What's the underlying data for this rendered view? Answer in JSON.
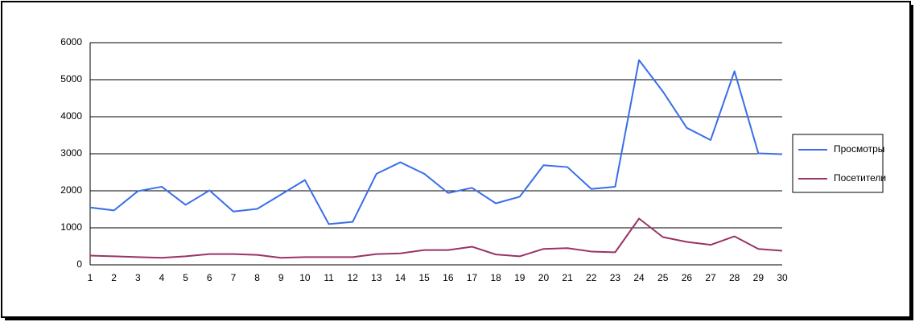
{
  "chart_data": {
    "type": "line",
    "categories": [
      "1",
      "2",
      "3",
      "4",
      "5",
      "6",
      "7",
      "8",
      "9",
      "10",
      "11",
      "12",
      "13",
      "14",
      "15",
      "16",
      "17",
      "18",
      "19",
      "20",
      "21",
      "22",
      "23",
      "24",
      "25",
      "26",
      "27",
      "28",
      "29",
      "30"
    ],
    "series": [
      {
        "name": "Просмотры",
        "color": "#3a6ee8",
        "values": [
          1550,
          1470,
          1990,
          2110,
          1620,
          2010,
          1440,
          1510,
          1900,
          2290,
          1100,
          1160,
          2460,
          2770,
          2460,
          1940,
          2080,
          1660,
          1840,
          2690,
          2640,
          2050,
          2110,
          5530,
          4680,
          3700,
          3370,
          5230,
          3010,
          2990
        ]
      },
      {
        "name": "Посетители",
        "color": "#993366",
        "values": [
          250,
          230,
          210,
          190,
          230,
          290,
          290,
          270,
          190,
          210,
          210,
          210,
          290,
          310,
          400,
          400,
          490,
          280,
          230,
          430,
          450,
          360,
          340,
          1250,
          750,
          620,
          540,
          770,
          430,
          380
        ]
      }
    ],
    "ylim": [
      0,
      6000
    ],
    "yticks": [
      0,
      1000,
      2000,
      3000,
      4000,
      5000,
      6000
    ],
    "grid": true,
    "legend": "right"
  }
}
